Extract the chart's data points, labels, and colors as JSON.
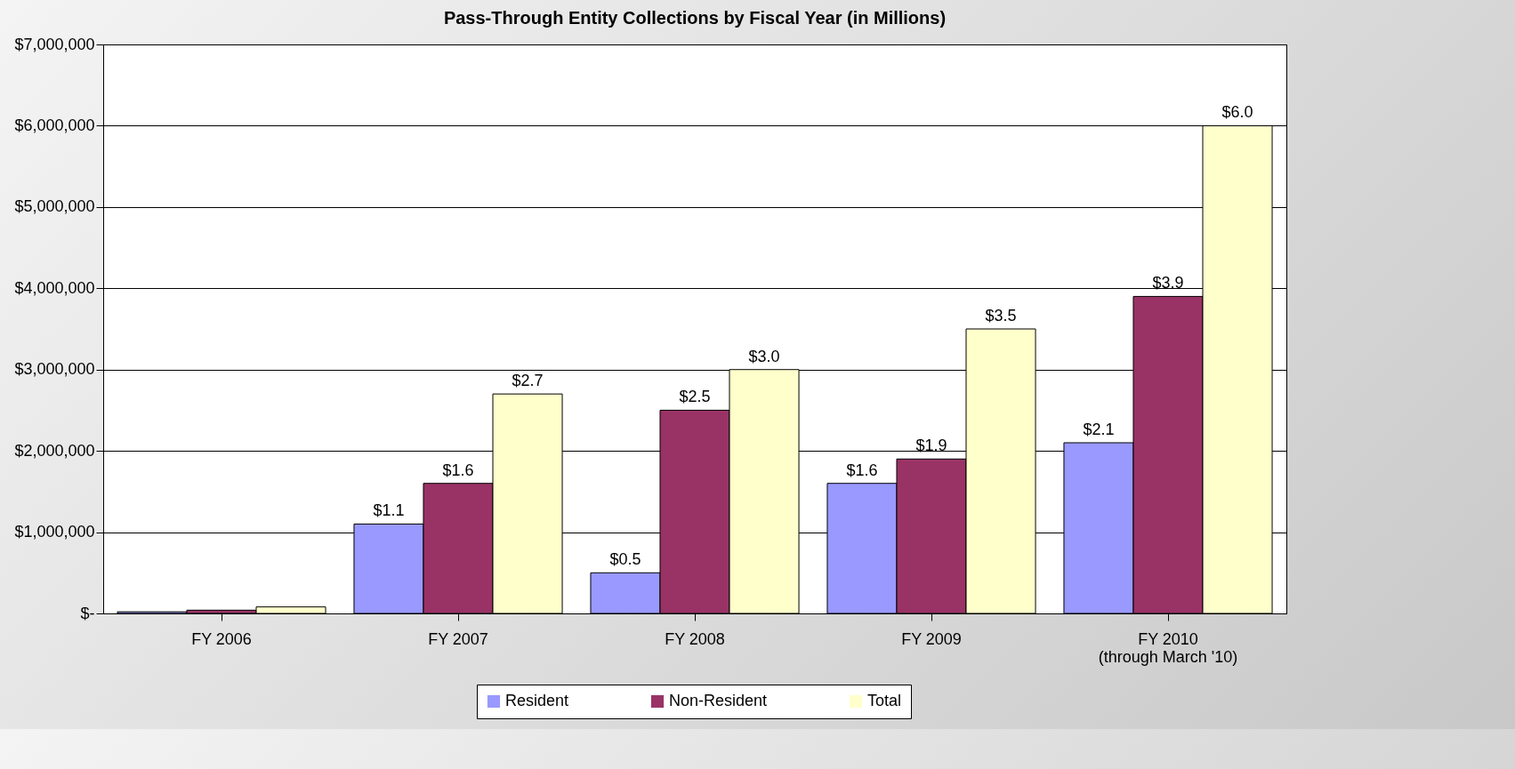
{
  "chart_data": {
    "type": "bar",
    "title": "Pass-Through Entity Collections by Fiscal Year (in Millions)",
    "categories": [
      "FY 2006",
      "FY 2007",
      "FY 2008",
      "FY 2009",
      "FY 2010\n(through March '10)"
    ],
    "series": [
      {
        "name": "Resident",
        "color": "#9999ff",
        "values": [
          20000,
          1100000,
          500000,
          1600000,
          2100000
        ]
      },
      {
        "name": "Non-Resident",
        "color": "#993366",
        "values": [
          40000,
          1600000,
          2500000,
          1900000,
          3900000
        ]
      },
      {
        "name": "Total",
        "color": "#ffffcc",
        "values": [
          80000,
          2700000,
          3000000,
          3500000,
          6000000
        ]
      }
    ],
    "annotations": [
      "$1.1",
      "$1.6",
      "$2.7",
      "$0.5",
      "$2.5",
      "$3.0",
      "$1.6",
      "$1.9",
      "$3.5",
      "$2.1",
      "$3.9",
      "$6.0"
    ],
    "ylim": [
      0,
      7000000
    ],
    "yticks": [
      {
        "value": 0,
        "label": "$-"
      },
      {
        "value": 1000000,
        "label": "$1,000,000"
      },
      {
        "value": 2000000,
        "label": "$2,000,000"
      },
      {
        "value": 3000000,
        "label": "$3,000,000"
      },
      {
        "value": 4000000,
        "label": "$4,000,000"
      },
      {
        "value": 5000000,
        "label": "$5,000,000"
      },
      {
        "value": 6000000,
        "label": "$6,000,000"
      },
      {
        "value": 7000000,
        "label": "$7,000,000"
      }
    ],
    "grid": "y",
    "legend": "bottom"
  }
}
